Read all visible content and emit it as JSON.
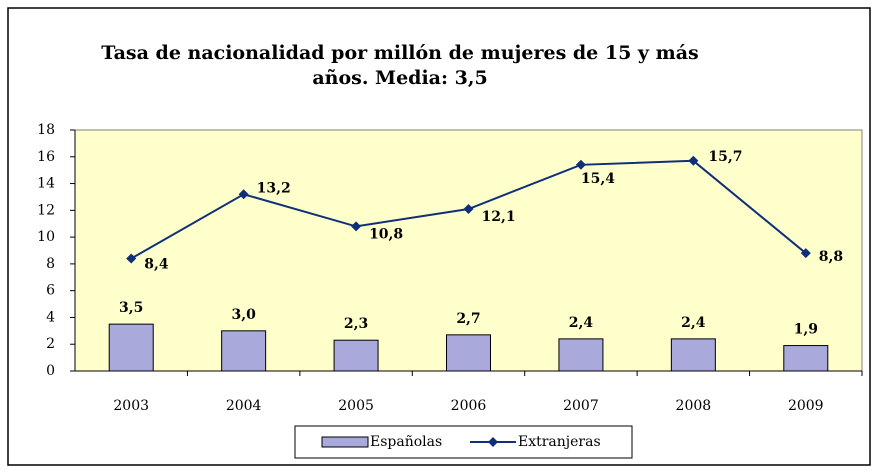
{
  "chart_data": {
    "type": "bar_line",
    "title": [
      "Tasa de nacionalidad por millón de mujeres de 15 y más",
      "años. Media: 3,5"
    ],
    "categories": [
      "2003",
      "2004",
      "2005",
      "2006",
      "2007",
      "2008",
      "2009"
    ],
    "series": [
      {
        "name": "Españolas",
        "type": "bar",
        "color": "#a9a9dc",
        "values": [
          3.5,
          3.0,
          2.3,
          2.7,
          2.4,
          2.4,
          1.9
        ],
        "value_labels": [
          "3,5",
          "3,0",
          "2,3",
          "2,7",
          "2,4",
          "2,4",
          "1,9"
        ]
      },
      {
        "name": "Extranjeras",
        "type": "line",
        "color": "#0f2f7a",
        "values": [
          8.4,
          13.2,
          10.8,
          12.1,
          15.4,
          15.7,
          8.8
        ],
        "value_labels": [
          "8,4",
          "13,2",
          "10,8",
          "12,1",
          "15,4",
          "15,7",
          "8,8"
        ]
      }
    ],
    "ylim": [
      0,
      18
    ],
    "yticks": [
      0,
      2,
      4,
      6,
      8,
      10,
      12,
      14,
      16,
      18
    ],
    "legend": "bottom"
  }
}
